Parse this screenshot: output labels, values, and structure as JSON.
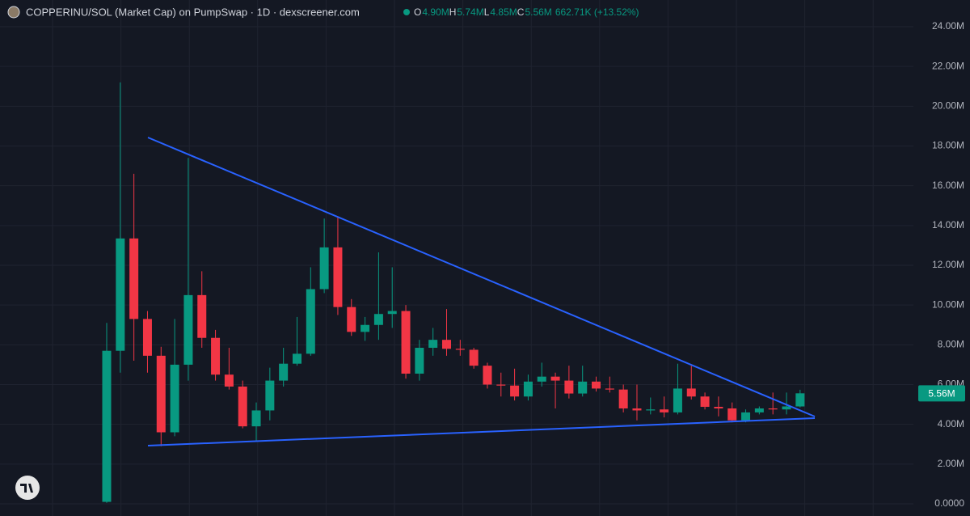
{
  "chart_data": {
    "type": "candlestick",
    "title": "COPPERINU/SOL (Market Cap) on PumpSwap · 1D · dexscreener.com",
    "ohlc_header": [
      {
        "key": "O",
        "text": "4.90M"
      },
      {
        "key": "H",
        "text": "5.74M"
      },
      {
        "key": "L",
        "text": "4.85M"
      },
      {
        "key": "C",
        "text": "5.56M"
      }
    ],
    "change_text": "662.71K (+13.52%)",
    "up_color": "#089981",
    "down_color": "#f23645",
    "open": [
      0.1,
      7.7,
      13.35,
      9.3,
      7.45,
      3.6,
      7.0,
      10.5,
      8.35,
      6.5,
      5.9,
      3.9,
      4.7,
      6.2,
      7.05,
      7.55,
      10.8,
      12.9,
      9.9,
      8.65,
      9.0,
      9.55,
      9.7,
      6.55,
      7.85,
      8.25,
      7.8,
      7.75,
      6.95,
      6.0,
      5.95,
      5.4,
      6.15,
      6.4,
      6.2,
      5.55,
      6.15,
      5.8,
      5.75,
      4.8,
      4.7,
      4.75,
      4.6,
      5.8,
      5.4,
      4.88,
      4.8,
      4.2,
      4.6,
      4.8,
      4.75,
      4.9
    ],
    "high": [
      9.1,
      21.2,
      16.6,
      9.7,
      7.9,
      9.3,
      17.4,
      11.7,
      8.75,
      7.85,
      6.2,
      5.1,
      6.85,
      7.85,
      9.4,
      11.9,
      14.35,
      14.45,
      10.3,
      9.4,
      12.65,
      11.9,
      10.0,
      8.25,
      8.85,
      9.8,
      8.25,
      7.85,
      7.1,
      6.6,
      6.8,
      6.5,
      7.1,
      6.6,
      6.95,
      6.95,
      6.4,
      6.4,
      6.0,
      6.0,
      5.35,
      5.4,
      7.05,
      6.95,
      5.6,
      5.4,
      5.1,
      4.75,
      4.9,
      5.6,
      5.6,
      5.74
    ],
    "low": [
      0.05,
      6.6,
      7.2,
      6.6,
      2.9,
      3.4,
      6.2,
      7.85,
      6.2,
      5.75,
      3.8,
      3.15,
      4.2,
      5.9,
      6.95,
      7.45,
      10.6,
      9.5,
      8.45,
      8.2,
      8.25,
      8.85,
      6.3,
      6.2,
      7.45,
      7.45,
      7.45,
      6.8,
      5.8,
      5.4,
      5.2,
      5.2,
      5.9,
      4.8,
      5.3,
      5.4,
      5.65,
      5.6,
      4.6,
      4.2,
      4.5,
      4.35,
      4.5,
      5.25,
      4.75,
      4.4,
      4.1,
      4.1,
      4.5,
      4.5,
      4.5,
      4.85
    ],
    "close": [
      7.7,
      13.35,
      9.3,
      7.45,
      3.6,
      7.0,
      10.5,
      8.35,
      6.5,
      5.9,
      3.9,
      4.7,
      6.2,
      7.05,
      7.55,
      10.8,
      12.9,
      9.9,
      8.65,
      9.0,
      9.55,
      9.7,
      6.55,
      7.85,
      8.25,
      7.8,
      7.75,
      6.95,
      6.0,
      5.95,
      5.4,
      6.15,
      6.4,
      6.2,
      5.55,
      6.15,
      5.8,
      5.75,
      4.8,
      4.7,
      4.75,
      4.6,
      5.8,
      5.4,
      4.88,
      4.8,
      4.2,
      4.6,
      4.8,
      4.75,
      4.9,
      5.56
    ],
    "price_label": {
      "value": 5.56,
      "label": "5.56M"
    },
    "ylim": [
      0,
      24
    ],
    "yticks": [
      {
        "value": 0,
        "label": "0.0000"
      },
      {
        "value": 2,
        "label": "2.00M"
      },
      {
        "value": 4,
        "label": "4.00M"
      },
      {
        "value": 6,
        "label": "6.00M"
      },
      {
        "value": 8,
        "label": "8.00M"
      },
      {
        "value": 10,
        "label": "10.00M"
      },
      {
        "value": 12,
        "label": "12.00M"
      },
      {
        "value": 14,
        "label": "14.00M"
      },
      {
        "value": 16,
        "label": "16.00M"
      },
      {
        "value": 18,
        "label": "18.00M"
      },
      {
        "value": 20,
        "label": "20.00M"
      },
      {
        "value": 22,
        "label": "22.00M"
      },
      {
        "value": 24,
        "label": "24.00M"
      }
    ],
    "grid": true
  }
}
